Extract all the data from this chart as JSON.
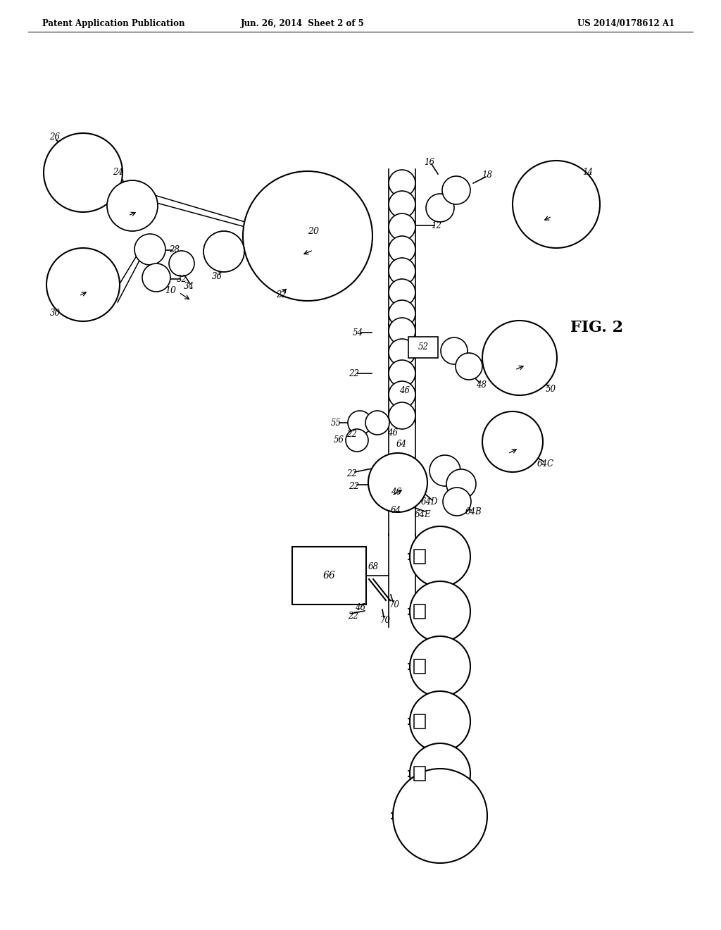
{
  "header_left": "Patent Application Publication",
  "header_center": "Jun. 26, 2014  Sheet 2 of 5",
  "header_right": "US 2014/0178612 A1",
  "fig_label": "FIG. 2",
  "background_color": "#ffffff",
  "line_color": "#000000"
}
